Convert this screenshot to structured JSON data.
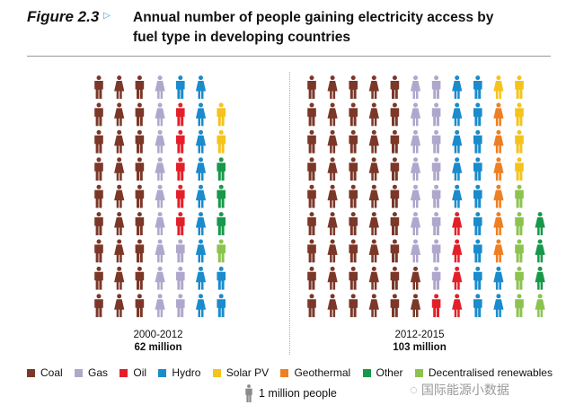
{
  "header": {
    "figure_label": "Figure 2.3",
    "title": "Annual number of people gaining electricity access by fuel type in developing countries"
  },
  "chart_data": {
    "type": "pictogram",
    "title": "Annual number of people gaining electricity access by fuel type in developing countries",
    "unit": "1 million people",
    "categories": {
      "C": {
        "name": "Coal",
        "color": "#7b3728"
      },
      "G": {
        "name": "Gas",
        "color": "#b0a7cd"
      },
      "O": {
        "name": "Oil",
        "color": "#e3202a"
      },
      "H": {
        "name": "Hydro",
        "color": "#1a8bcc"
      },
      "S": {
        "name": "Solar PV",
        "color": "#f5c31c"
      },
      "T": {
        "name": "Geothermal",
        "color": "#ee7f22"
      },
      "X": {
        "name": "Other",
        "color": "#18984a"
      },
      "D": {
        "name": "Decentralised renewables",
        "color": "#8cc34f"
      }
    },
    "panels": [
      {
        "period": "2000-2012",
        "total": "62 million",
        "values": {
          "Coal": 27,
          "Gas": 12,
          "Oil": 5,
          "Hydro": 12,
          "Solar PV": 2,
          "Geothermal": 0,
          "Other": 3,
          "Decentralised renewables": 1
        },
        "columns": [
          "CCCCCCCCC",
          "CCCCCCCCC",
          "CCCCCCCCC",
          "GGGGGGGGG",
          "HOOOOOGGG",
          "HHHHHHHHH",
          "-SSXXXDHH"
        ]
      },
      {
        "period": "2012-2015",
        "total": "103 million",
        "values": {
          "Coal": 47,
          "Gas": 15,
          "Oil": 5,
          "Hydro": 16,
          "Solar PV": 5,
          "Geothermal": 6,
          "Other": 3,
          "Decentralised renewables": 6
        },
        "columns": [
          "CCCCCCCCC",
          "CCCCCCCCC",
          "CCCCCCCCC",
          "CCCCCCCCC",
          "CCCCCCCCC",
          "GGGGGGGCC",
          "GGGGGGGGO",
          "HHHHHOOOO",
          "HHHHHHHHH",
          "STTTTTTHH",
          "SSSSDDDDD",
          "-----XXXD"
        ]
      }
    ],
    "legend": [
      "Coal",
      "Gas",
      "Oil",
      "Hydro",
      "Solar PV",
      "Geothermal",
      "Other",
      "Decentralised renewables"
    ],
    "legend_placement": "bottom"
  },
  "watermark": "国际能源小数据"
}
